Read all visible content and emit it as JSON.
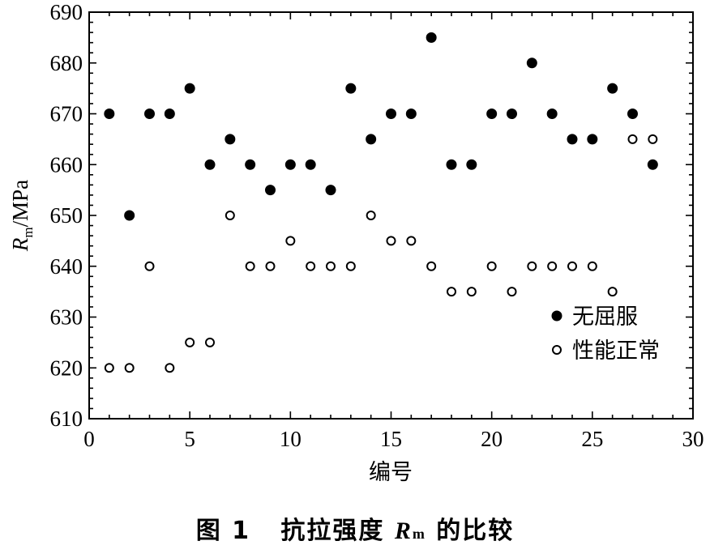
{
  "chart_data": {
    "type": "scatter",
    "xlabel": "编号",
    "ylabel": {
      "main": "R",
      "sub": "m",
      "unit": "/MPa"
    },
    "xlim": [
      0,
      30
    ],
    "ylim": [
      610,
      690
    ],
    "xticks": [
      0,
      5,
      10,
      15,
      20,
      25,
      30
    ],
    "yticks": [
      610,
      620,
      630,
      640,
      650,
      660,
      670,
      680,
      690
    ],
    "grid": false,
    "legend_position": "bottom-right",
    "series": [
      {
        "name": "无屈服",
        "marker": "filled-circle",
        "x": [
          1,
          2,
          3,
          4,
          5,
          6,
          7,
          8,
          9,
          10,
          11,
          12,
          13,
          14,
          15,
          16,
          17,
          18,
          19,
          20,
          21,
          22,
          23,
          24,
          25,
          26,
          27,
          28
        ],
        "y": [
          670,
          650,
          670,
          670,
          675,
          660,
          665,
          660,
          655,
          660,
          660,
          655,
          675,
          665,
          670,
          670,
          685,
          660,
          660,
          670,
          670,
          680,
          670,
          665,
          665,
          675,
          670,
          660
        ]
      },
      {
        "name": "性能正常",
        "marker": "open-circle",
        "x": [
          1,
          2,
          3,
          4,
          5,
          6,
          7,
          8,
          9,
          10,
          11,
          12,
          13,
          14,
          15,
          16,
          17,
          18,
          19,
          20,
          21,
          22,
          23,
          24,
          25,
          26,
          27,
          28
        ],
        "y": [
          620,
          620,
          640,
          620,
          625,
          625,
          650,
          640,
          640,
          645,
          640,
          640,
          640,
          650,
          645,
          645,
          640,
          635,
          635,
          640,
          635,
          640,
          640,
          640,
          640,
          635,
          665,
          665
        ]
      }
    ]
  },
  "caption": {
    "figure": "图 1",
    "title_pre": "抗拉强度",
    "symbol": "R",
    "symbol_sub": "m",
    "title_post": "的比较"
  }
}
